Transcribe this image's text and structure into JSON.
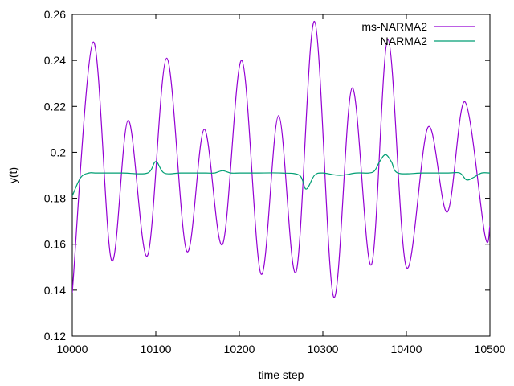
{
  "chart_data": {
    "type": "line",
    "title": "",
    "xlabel": "time step",
    "ylabel": "y(t)",
    "xlim": [
      10000,
      10500
    ],
    "ylim": [
      0.12,
      0.26
    ],
    "xticks": [
      "10000",
      "10100",
      "10200",
      "10300",
      "10400",
      "10500"
    ],
    "yticks": [
      "0.12",
      "0.14",
      "0.16",
      "0.18",
      "0.2",
      "0.22",
      "0.24",
      "0.26"
    ],
    "grid": false,
    "legend_position": "top-right",
    "series": [
      {
        "name": "ms-NARMA2",
        "color": "#9400d3",
        "x": [
          10000,
          10025,
          10047,
          10067,
          10090,
          10113,
          10137,
          10158,
          10180,
          10203,
          10226,
          10247,
          10268,
          10290,
          10313,
          10335,
          10358,
          10378,
          10400,
          10426,
          10449,
          10470,
          10494,
          10500
        ],
        "y": [
          0.139,
          0.248,
          0.153,
          0.214,
          0.155,
          0.241,
          0.157,
          0.21,
          0.16,
          0.24,
          0.147,
          0.216,
          0.148,
          0.257,
          0.137,
          0.228,
          0.151,
          0.249,
          0.15,
          0.211,
          0.174,
          0.222,
          0.164,
          0.168
        ]
      },
      {
        "name": "NARMA2",
        "color": "#009e73",
        "x": [
          10000,
          10010,
          10020,
          10030,
          10060,
          10090,
          10100,
          10110,
          10130,
          10160,
          10170,
          10180,
          10190,
          10200,
          10220,
          10250,
          10272,
          10280,
          10290,
          10300,
          10320,
          10340,
          10355,
          10362,
          10368,
          10375,
          10382,
          10390,
          10420,
          10450,
          10464,
          10472,
          10480,
          10490,
          10500
        ],
        "y": [
          0.181,
          0.189,
          0.191,
          0.191,
          0.191,
          0.191,
          0.196,
          0.191,
          0.191,
          0.191,
          0.191,
          0.192,
          0.191,
          0.191,
          0.191,
          0.191,
          0.19,
          0.184,
          0.19,
          0.191,
          0.19,
          0.191,
          0.191,
          0.192,
          0.196,
          0.199,
          0.196,
          0.191,
          0.191,
          0.191,
          0.191,
          0.188,
          0.189,
          0.191,
          0.191
        ]
      }
    ]
  }
}
